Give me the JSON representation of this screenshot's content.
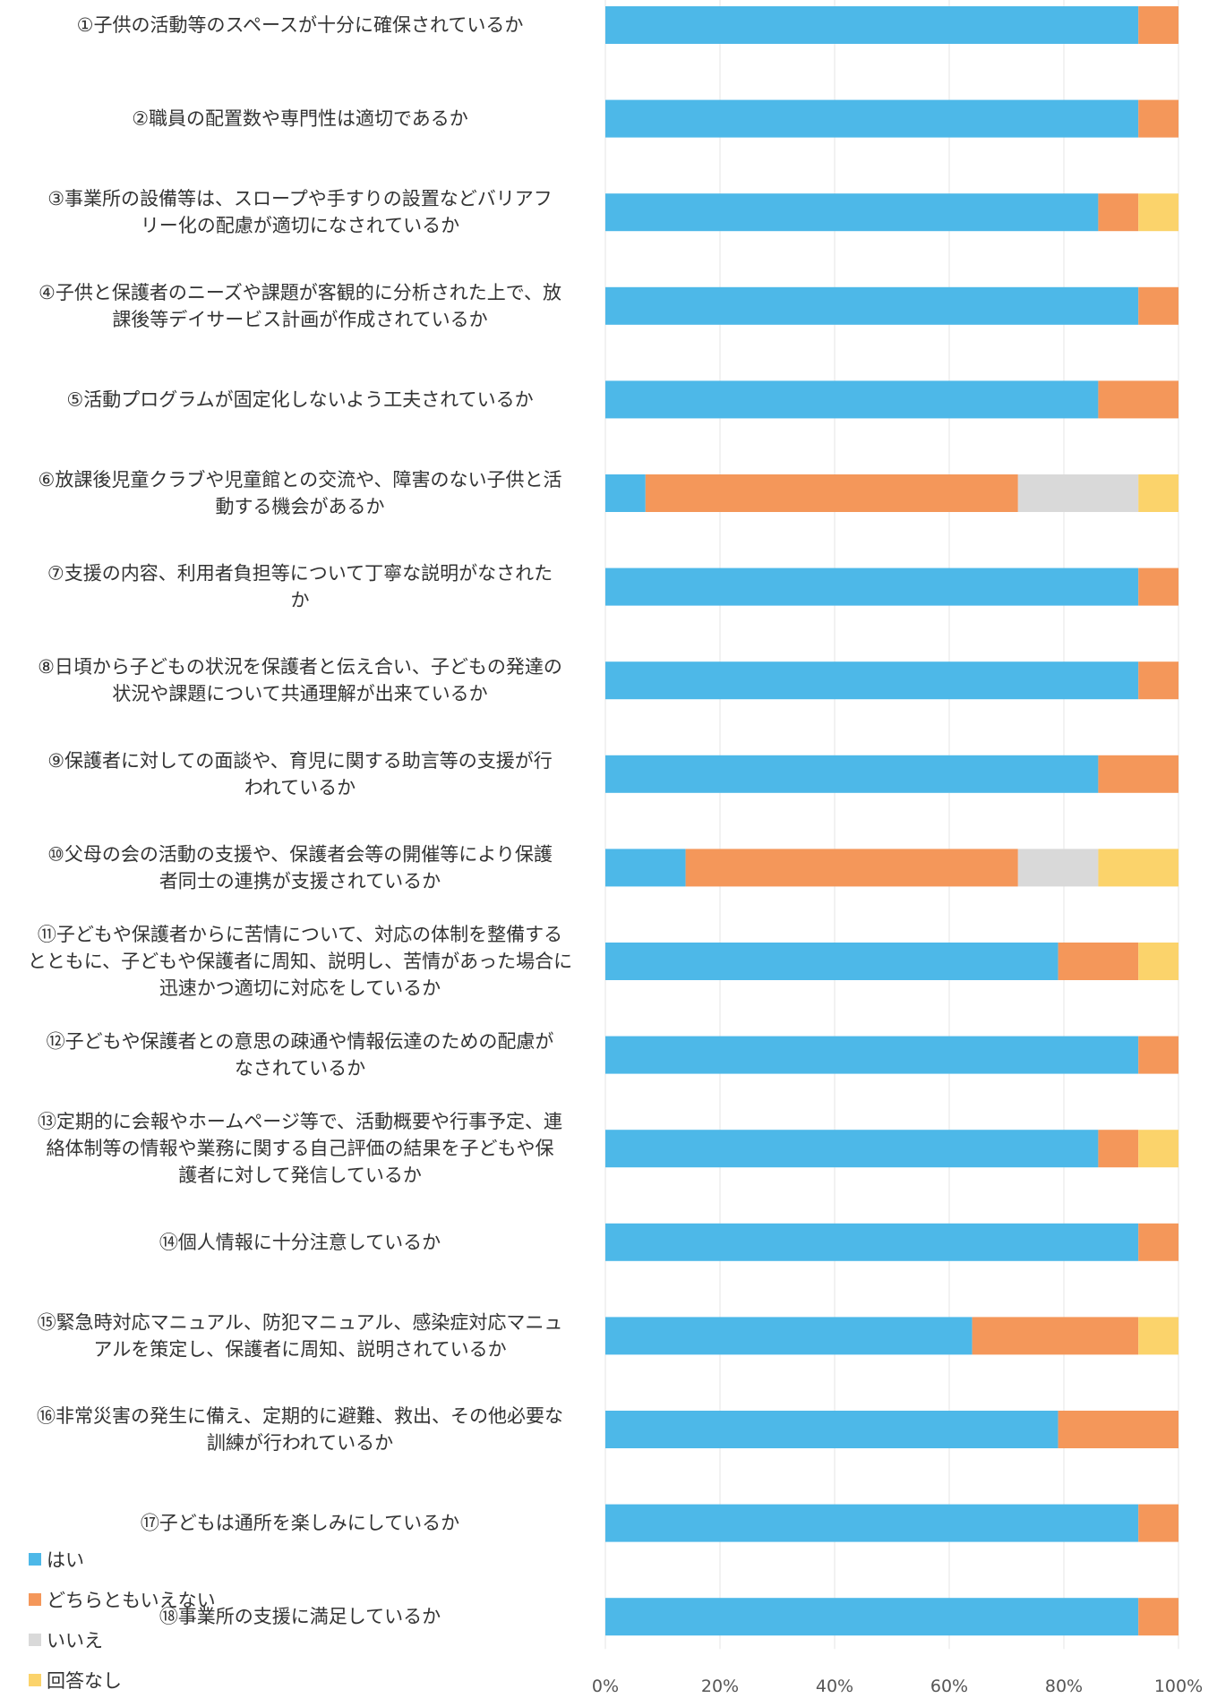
{
  "chart_data": {
    "type": "bar",
    "orientation": "horizontal",
    "stacked": true,
    "normalized_percent": true,
    "xlim": [
      0,
      100
    ],
    "x_ticks": [
      "0%",
      "20%",
      "40%",
      "60%",
      "80%",
      "100%"
    ],
    "grid": true,
    "legend_position": "bottom-left",
    "categories": [
      [
        "①子供の活動等のスペースが十分に確保されているか"
      ],
      [
        "②職員の配置数や専門性は適切であるか"
      ],
      [
        "③事業所の設備等は、スロープや手すりの設置などバリアフ",
        "リー化の配慮が適切になされているか"
      ],
      [
        "④子供と保護者のニーズや課題が客観的に分析された上で、放",
        "課後等デイサービス計画が作成されているか"
      ],
      [
        "⑤活動プログラムが固定化しないよう工夫されているか"
      ],
      [
        "⑥放課後児童クラブや児童館との交流や、障害のない子供と活",
        "動する機会があるか"
      ],
      [
        "⑦支援の内容、利用者負担等について丁寧な説明がなされた",
        "か"
      ],
      [
        "⑧日頃から子どもの状況を保護者と伝え合い、子どもの発達の",
        "状況や課題について共通理解が出来ているか"
      ],
      [
        "⑨保護者に対しての面談や、育児に関する助言等の支援が行",
        "われているか"
      ],
      [
        "⑩父母の会の活動の支援や、保護者会等の開催等により保護",
        "者同士の連携が支援されているか"
      ],
      [
        "⑪子どもや保護者からに苦情について、対応の体制を整備する",
        "とともに、子どもや保護者に周知、説明し、苦情があった場合に",
        "迅速かつ適切に対応をしているか"
      ],
      [
        "⑫子どもや保護者との意思の疎通や情報伝達のための配慮が",
        "なされているか"
      ],
      [
        "⑬定期的に会報やホームページ等で、活動概要や行事予定、連",
        "絡体制等の情報や業務に関する自己評価の結果を子どもや保",
        "護者に対して発信しているか"
      ],
      [
        "⑭個人情報に十分注意しているか"
      ],
      [
        "⑮緊急時対応マニュアル、防犯マニュアル、感染症対応マニュ",
        "アルを策定し、保護者に周知、説明されているか"
      ],
      [
        "⑯非常災害の発生に備え、定期的に避難、救出、その他必要な",
        "訓練が行われているか"
      ],
      [
        "⑰子どもは通所を楽しみにしているか"
      ],
      [
        "⑱事業所の支援に満足しているか"
      ]
    ],
    "series": [
      {
        "name": "はい",
        "color": "#4db8e8",
        "values": [
          93,
          93,
          86,
          93,
          86,
          7,
          93,
          93,
          86,
          14,
          79,
          93,
          86,
          93,
          64,
          79,
          93,
          93
        ]
      },
      {
        "name": "どちらともいえない",
        "color": "#f4975a",
        "values": [
          7,
          7,
          7,
          7,
          14,
          65,
          7,
          7,
          14,
          58,
          14,
          7,
          7,
          7,
          29,
          21,
          7,
          7
        ]
      },
      {
        "name": "いいえ",
        "color": "#d9d9d9",
        "values": [
          0,
          0,
          0,
          0,
          0,
          21,
          0,
          0,
          0,
          14,
          0,
          0,
          0,
          0,
          0,
          0,
          0,
          0
        ]
      },
      {
        "name": "回答なし",
        "color": "#fbd36b",
        "values": [
          0,
          0,
          7,
          0,
          0,
          7,
          0,
          0,
          0,
          14,
          7,
          0,
          7,
          0,
          7,
          0,
          0,
          0
        ]
      }
    ]
  }
}
